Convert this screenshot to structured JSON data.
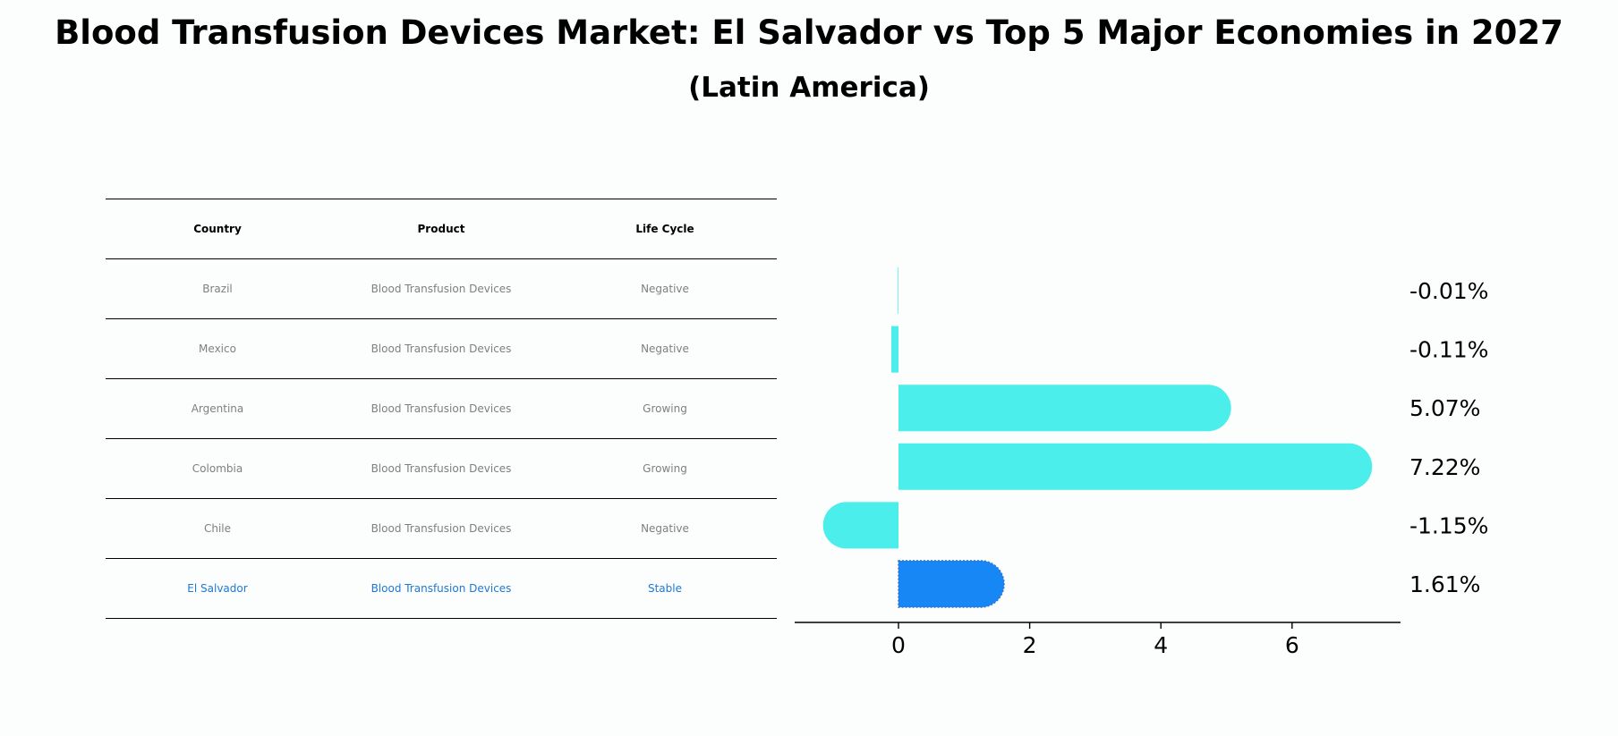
{
  "title": "Blood Transfusion Devices Market: El Salvador vs Top 5 Major Economies in 2027",
  "subtitle": "(Latin America)",
  "table": {
    "headers": {
      "country": "Country",
      "product": "Product",
      "life_cycle": "Life Cycle"
    },
    "rows": [
      {
        "country": "Brazil",
        "product": "Blood Transfusion Devices",
        "life_cycle": "Negative"
      },
      {
        "country": "Mexico",
        "product": "Blood Transfusion Devices",
        "life_cycle": "Negative"
      },
      {
        "country": "Argentina",
        "product": "Blood Transfusion Devices",
        "life_cycle": "Growing"
      },
      {
        "country": "Colombia",
        "product": "Blood Transfusion Devices",
        "life_cycle": "Growing"
      },
      {
        "country": "Chile",
        "product": "Blood Transfusion Devices",
        "life_cycle": "Negative"
      },
      {
        "country": "El Salvador",
        "product": "Blood Transfusion Devices",
        "life_cycle": "Stable"
      }
    ]
  },
  "colors": {
    "bar": "#4beeea",
    "highlight_bar": "#1787f5",
    "highlight_text": "#1f77d4",
    "row_text": "#7f7f7f"
  },
  "chart_data": {
    "type": "bar",
    "orientation": "horizontal",
    "categories": [
      "Brazil",
      "Mexico",
      "Argentina",
      "Colombia",
      "Chile",
      "El Salvador"
    ],
    "values": [
      -0.01,
      -0.11,
      5.07,
      7.22,
      -1.15,
      1.61
    ],
    "data_labels": [
      "-0.01%",
      "-0.11%",
      "5.07%",
      "7.22%",
      "-1.15%",
      "1.61%"
    ],
    "highlight": "El Salvador",
    "xlim": [
      -1.6,
      7.6
    ],
    "xticks": [
      0,
      2,
      4,
      6
    ],
    "xtick_labels": [
      "0",
      "2",
      "4",
      "6"
    ],
    "title": "",
    "xlabel": "",
    "ylabel": ""
  }
}
